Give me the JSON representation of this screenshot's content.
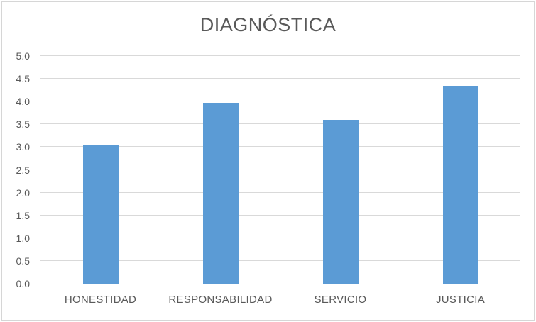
{
  "window": {
    "background": "#ffffff",
    "frame_color": "#d6d6d6"
  },
  "chart_data": {
    "type": "bar",
    "title": "DIAGNÓSTICA",
    "categories": [
      "HONESTIDAD",
      "RESPONSABILIDAD",
      "SERVICIO",
      "JUSTICIA"
    ],
    "values": [
      3.05,
      3.97,
      3.6,
      4.35
    ],
    "xlabel": "",
    "ylabel": "",
    "ylim": [
      0,
      5
    ],
    "ytick_step": 0.5,
    "yticks": [
      {
        "label": "0.0",
        "value": 0.0
      },
      {
        "label": "0.5",
        "value": 0.5
      },
      {
        "label": "1.0",
        "value": 1.0
      },
      {
        "label": "1.5",
        "value": 1.5
      },
      {
        "label": "2.0",
        "value": 2.0
      },
      {
        "label": "2.5",
        "value": 2.5
      },
      {
        "label": "3.0",
        "value": 3.0
      },
      {
        "label": "3.5",
        "value": 3.5
      },
      {
        "label": "4.0",
        "value": 4.0
      },
      {
        "label": "4.5",
        "value": 4.5
      },
      {
        "label": "5.0",
        "value": 5.0
      }
    ],
    "grid": true,
    "legend": false,
    "bar_color": "#5b9bd5",
    "gridline_color": "#d9d9d9",
    "axis_line_color": "#c6c6c6",
    "text_color": "#595959"
  }
}
